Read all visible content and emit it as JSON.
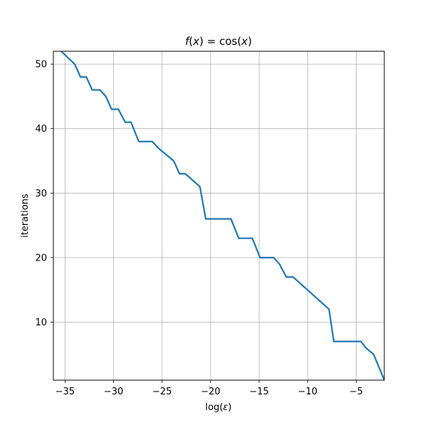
{
  "chart_data": {
    "type": "line",
    "title": "f(x) = cos(x)",
    "title_parts": {
      "f": "f",
      "open1": "(",
      "x1": "x",
      "close1": ")",
      "eq": " = cos(",
      "x2": "x",
      "close2": ")"
    },
    "xlabel": "log(ε)",
    "xlabel_parts": {
      "pre": "log(",
      "eps": "ε",
      "post": ")"
    },
    "ylabel": "iterations",
    "xlim": [
      -36.2,
      -2.1
    ],
    "ylim": [
      1,
      52
    ],
    "xticks": [
      -35,
      -30,
      -25,
      -20,
      -15,
      -10,
      -5
    ],
    "xtick_labels": [
      "−35",
      "−30",
      "−25",
      "−20",
      "−15",
      "−10",
      "−5"
    ],
    "yticks": [
      10,
      20,
      30,
      40,
      50
    ],
    "ytick_labels": [
      "10",
      "20",
      "30",
      "40",
      "50"
    ],
    "grid": true,
    "line_color": "#1f77b4",
    "series": [
      {
        "x": [
          -35.4,
          -34.0,
          -33.4,
          -32.8,
          -32.2,
          -31.4,
          -30.8,
          -30.2,
          -29.5,
          -28.8,
          -28.2,
          -27.4,
          -26.8,
          -26.0,
          -25.4,
          -23.8,
          -23.2,
          -22.6,
          -21.1,
          -20.5,
          -17.9,
          -17.1,
          -15.7,
          -14.9,
          -13.5,
          -12.9,
          -12.2,
          -11.5,
          -7.8,
          -7.3,
          -4.5,
          -4.0,
          -3.2,
          -2.1
        ],
        "y": [
          52,
          50,
          48,
          48,
          46,
          46,
          45,
          43,
          43,
          41,
          41,
          38,
          38,
          38,
          37,
          35,
          33,
          33,
          31,
          26,
          26,
          23,
          23,
          20,
          20,
          19,
          17,
          17,
          12,
          7,
          7,
          6,
          5,
          1
        ]
      }
    ]
  }
}
